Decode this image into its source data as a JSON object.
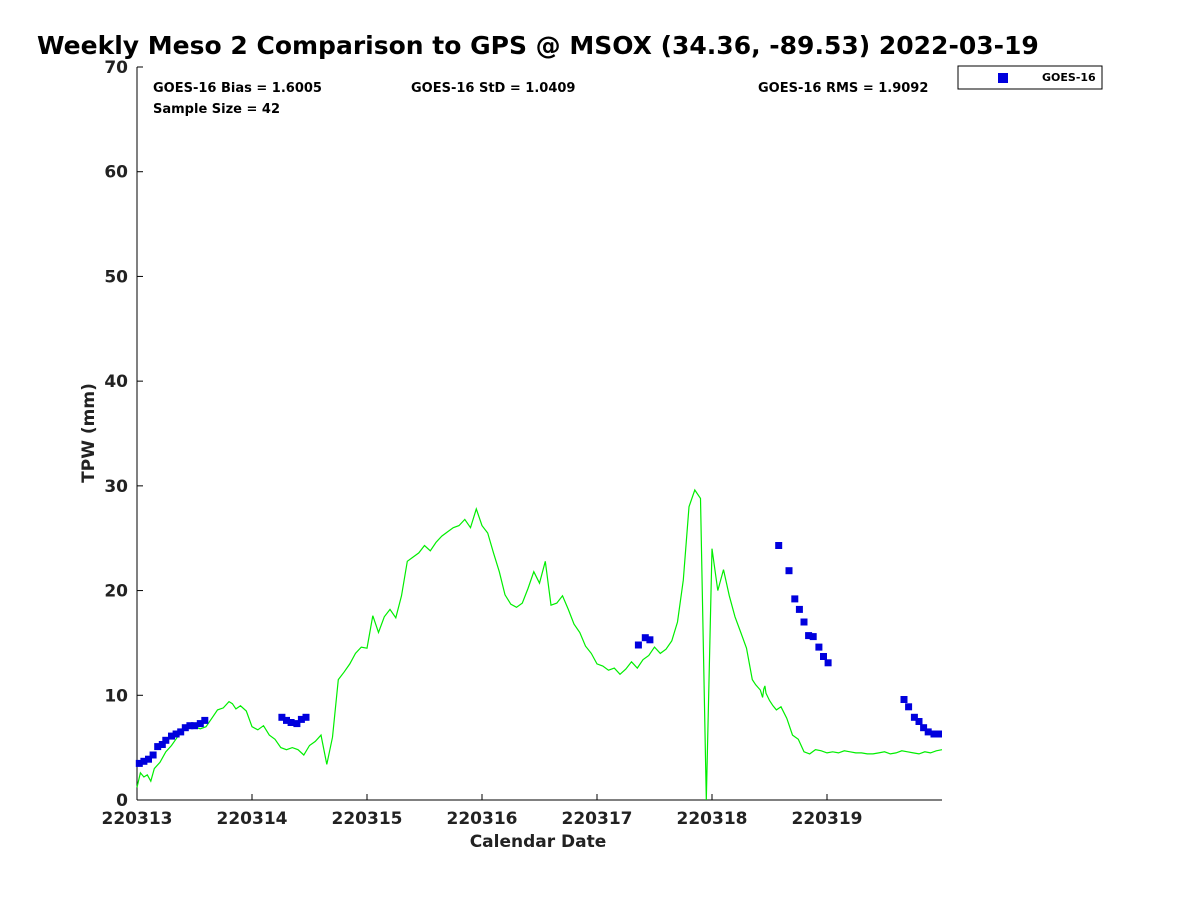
{
  "chart_data": {
    "type": "scatter",
    "title": "Weekly Meso 2 Comparison to GPS @ MSOX (34.36, -89.53) 2022-03-19",
    "xlabel": "Calendar Date",
    "ylabel": "TPW (mm)",
    "xlim": [
      0,
      7
    ],
    "ylim": [
      0,
      70
    ],
    "x_ticks": [
      0,
      1,
      2,
      3,
      4,
      5,
      6
    ],
    "x_tick_labels": [
      "220313",
      "220314",
      "220315",
      "220316",
      "220317",
      "220318",
      "220319"
    ],
    "y_ticks": [
      0,
      10,
      20,
      30,
      40,
      50,
      60,
      70
    ],
    "y_tick_labels": [
      "0",
      "10",
      "20",
      "30",
      "40",
      "50",
      "60",
      "70"
    ],
    "grid": false,
    "legend_position": "top-right, outside plot",
    "stats": {
      "bias": "GOES-16 Bias = 1.6005",
      "std": "GOES-16 StD = 1.0409",
      "rms": "GOES-16 RMS = 1.9092",
      "sample": "Sample Size = 42"
    },
    "series": [
      {
        "name": "GOES-16",
        "kind": "scatter",
        "marker": "square",
        "color": "#0000dd",
        "x": [
          0.02,
          0.06,
          0.1,
          0.14,
          0.18,
          0.22,
          0.25,
          0.3,
          0.34,
          0.38,
          0.42,
          0.46,
          0.5,
          0.55,
          0.59,
          1.26,
          1.3,
          1.34,
          1.39,
          1.43,
          1.47,
          4.36,
          4.42,
          4.46,
          5.58,
          5.67,
          5.72,
          5.76,
          5.8,
          5.84,
          5.88,
          5.93,
          5.97,
          6.01,
          6.67,
          6.71,
          6.76,
          6.8,
          6.84,
          6.88,
          6.93,
          6.97
        ],
        "values": [
          3.5,
          3.7,
          3.9,
          4.3,
          5.1,
          5.3,
          5.7,
          6.1,
          6.3,
          6.5,
          6.9,
          7.1,
          7.1,
          7.3,
          7.6,
          7.9,
          7.6,
          7.4,
          7.3,
          7.7,
          7.9,
          14.8,
          15.5,
          15.3,
          24.3,
          21.9,
          19.2,
          18.2,
          17.0,
          15.7,
          15.6,
          14.6,
          13.7,
          13.1,
          9.6,
          8.9,
          7.9,
          7.5,
          6.9,
          6.5,
          6.3,
          6.3
        ]
      },
      {
        "name": "",
        "kind": "line",
        "color": "#00ee00",
        "x": [
          0.0,
          0.03,
          0.06,
          0.09,
          0.12,
          0.15,
          0.2,
          0.25,
          0.3,
          0.35,
          0.4,
          0.45,
          0.5,
          0.55,
          0.6,
          0.65,
          0.7,
          0.75,
          0.8,
          0.83,
          0.86,
          0.9,
          0.95,
          1.0,
          1.05,
          1.1,
          1.15,
          1.2,
          1.25,
          1.3,
          1.35,
          1.4,
          1.45,
          1.5,
          1.55,
          1.6,
          1.65,
          1.7,
          1.75,
          1.8,
          1.85,
          1.9,
          1.95,
          2.0,
          2.05,
          2.1,
          2.15,
          2.2,
          2.25,
          2.3,
          2.35,
          2.4,
          2.45,
          2.5,
          2.55,
          2.6,
          2.65,
          2.7,
          2.75,
          2.8,
          2.85,
          2.9,
          2.95,
          3.0,
          3.05,
          3.1,
          3.15,
          3.2,
          3.25,
          3.3,
          3.35,
          3.4,
          3.45,
          3.5,
          3.55,
          3.6,
          3.65,
          3.7,
          3.75,
          3.8,
          3.85,
          3.9,
          3.95,
          4.0,
          4.05,
          4.1,
          4.15,
          4.2,
          4.25,
          4.3,
          4.35,
          4.4,
          4.45,
          4.5,
          4.55,
          4.6,
          4.65,
          4.7,
          4.75,
          4.8,
          4.85,
          4.9,
          4.95,
          5.0,
          5.05,
          5.1,
          5.15,
          5.2,
          5.25,
          5.3,
          5.35,
          5.38,
          5.42,
          5.44,
          5.45,
          5.46,
          5.47,
          5.5,
          5.53,
          5.56,
          5.6,
          5.65,
          5.7,
          5.75,
          5.8,
          5.85,
          5.9,
          5.95,
          6.0,
          6.05,
          6.1,
          6.15,
          6.2,
          6.25,
          6.3,
          6.35,
          6.4,
          6.45,
          6.5,
          6.55,
          6.6,
          6.65,
          6.7,
          6.75,
          6.8,
          6.85,
          6.9,
          6.95,
          7.0
        ],
        "values": [
          1.2,
          2.6,
          2.2,
          2.4,
          1.8,
          3.0,
          3.6,
          4.6,
          5.2,
          6.0,
          6.6,
          6.9,
          7.0,
          6.8,
          7.0,
          7.8,
          8.6,
          8.8,
          9.4,
          9.2,
          8.7,
          9.0,
          8.5,
          7.0,
          6.7,
          7.1,
          6.2,
          5.8,
          5.0,
          4.8,
          5.0,
          4.8,
          4.3,
          5.2,
          5.6,
          6.2,
          3.4,
          6.0,
          11.5,
          12.2,
          13.0,
          14.0,
          14.6,
          14.5,
          17.6,
          16.0,
          17.5,
          18.2,
          17.4,
          19.5,
          22.8,
          23.2,
          23.6,
          24.3,
          23.8,
          24.6,
          25.2,
          25.6,
          26.0,
          26.2,
          26.8,
          26.0,
          27.8,
          26.2,
          25.5,
          23.6,
          21.8,
          19.6,
          18.7,
          18.4,
          18.8,
          20.2,
          21.8,
          20.7,
          22.8,
          18.6,
          18.8,
          19.5,
          18.2,
          16.8,
          16.0,
          14.7,
          14.0,
          13.0,
          12.8,
          12.4,
          12.6,
          12.0,
          12.5,
          13.2,
          12.6,
          13.4,
          13.8,
          14.6,
          14.0,
          14.4,
          15.2,
          17.0,
          21.0,
          28.0,
          29.6,
          28.8,
          0.0,
          24.0,
          20.0,
          22.0,
          19.5,
          17.5,
          16.0,
          14.5,
          11.5,
          11.0,
          10.5,
          9.8,
          10.6,
          10.9,
          10.2,
          9.5,
          9.0,
          8.6,
          8.9,
          7.8,
          6.2,
          5.8,
          4.6,
          4.4,
          4.8,
          4.7,
          4.5,
          4.6,
          4.5,
          4.7,
          4.6,
          4.5,
          4.5,
          4.4,
          4.4,
          4.5,
          4.6,
          4.4,
          4.5,
          4.7,
          4.6,
          4.5,
          4.4,
          4.6,
          4.5,
          4.7,
          4.8
        ]
      }
    ]
  },
  "colors": {
    "marker": "#0000dd",
    "line": "#00ee00",
    "axis": "#000000"
  }
}
